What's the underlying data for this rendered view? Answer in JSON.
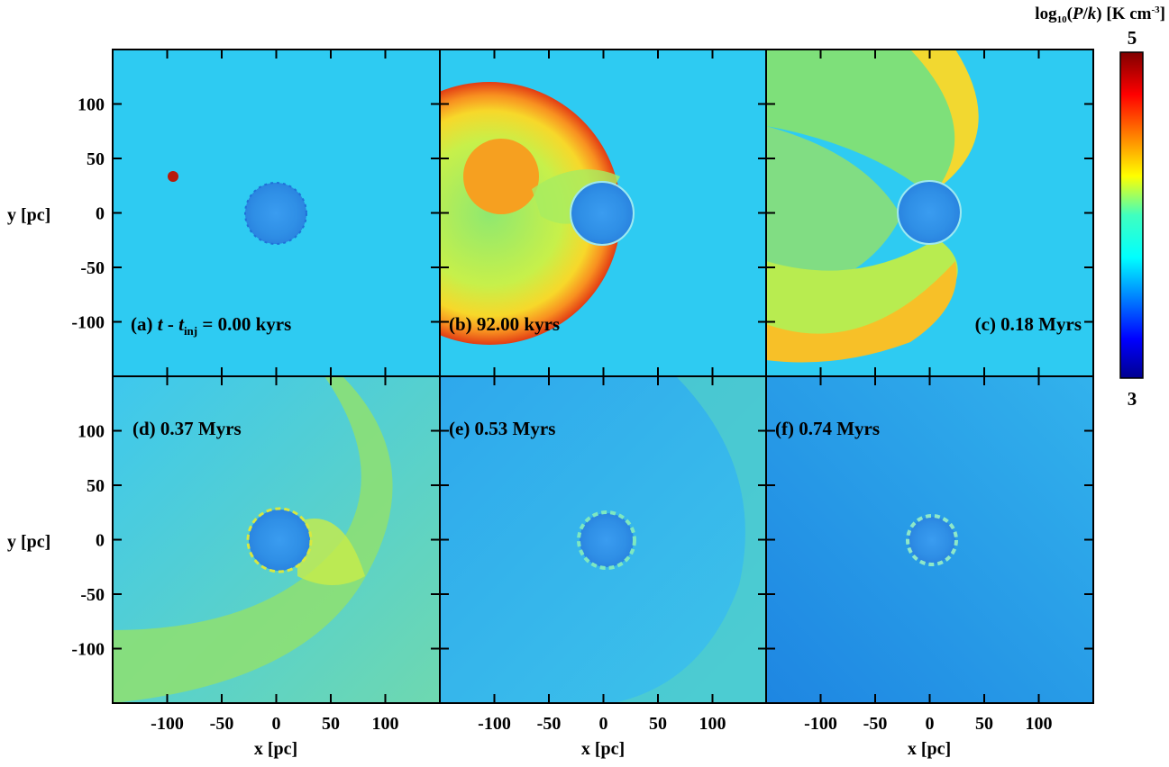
{
  "chart_data": {
    "type": "heatmap",
    "layout": "2x3 panel grid with shared axes",
    "xlabel": "x [pc]",
    "ylabel": "y [pc]",
    "xlim": [
      -150,
      150
    ],
    "ylim": [
      -150,
      150
    ],
    "x_ticks": [
      -100,
      -50,
      0,
      50,
      100
    ],
    "x_tick_labels": [
      "-100",
      "-50",
      "0",
      "50",
      "100"
    ],
    "y_ticks": [
      100,
      50,
      0,
      -50,
      -100
    ],
    "y_tick_labels": [
      "100",
      "50",
      "0",
      "-50",
      "-100"
    ],
    "colorbar": {
      "label_prefix": "log",
      "label_sub": "10",
      "label_open": "(",
      "label_P": "P",
      "label_slash": "/",
      "label_k": "k",
      "label_close": ") [K cm",
      "label_sup": "-3",
      "label_end": "]",
      "min": 3,
      "max": 5,
      "min_label": "3",
      "max_label": "5",
      "colormap": "jet"
    },
    "panels": [
      {
        "id": "a",
        "label_prefix": "(a) ",
        "label_t": "t",
        "label_minus": " - ",
        "label_tinj": "t",
        "label_sub": "inj",
        "label_suffix": " = 0.00 kyrs",
        "label_position": "bottom-left"
      },
      {
        "id": "b",
        "label": "(b) 92.00 kyrs",
        "label_position": "bottom-left"
      },
      {
        "id": "c",
        "label": "(c) 0.18 Myrs",
        "label_position": "bottom-right"
      },
      {
        "id": "d",
        "label": "(d) 0.37 Myrs",
        "label_position": "top-left"
      },
      {
        "id": "e",
        "label": "(e) 0.53 Myrs",
        "label_position": "top-left"
      },
      {
        "id": "f",
        "label": "(f) 0.74 Myrs",
        "label_position": "top-left"
      }
    ]
  }
}
